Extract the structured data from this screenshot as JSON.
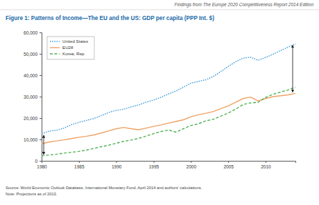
{
  "chart_data": {
    "type": "line",
    "header": "Findings from The Europe 2020 Competitiveness Report 2014 Edition",
    "title": "Figure 1: Patterns of Income—The EU and the US: GDP per capita (PPP Int. $)",
    "source": "Source: World Economic Outlook Database, International Monetary Fund, April 2014 and authors' calculations.",
    "note": "Note: Projections as of 2013.",
    "x": [
      1980,
      1981,
      1982,
      1983,
      1984,
      1985,
      1986,
      1987,
      1988,
      1989,
      1990,
      1991,
      1992,
      1993,
      1994,
      1995,
      1996,
      1997,
      1998,
      1999,
      2000,
      2001,
      2002,
      2003,
      2004,
      2005,
      2006,
      2007,
      2008,
      2009,
      2010,
      2011,
      2012,
      2013,
      2014
    ],
    "series": [
      {
        "name": "United States",
        "color": "#3a9ad9",
        "line_style": "dotted",
        "values": [
          12600,
          13900,
          14300,
          15300,
          16900,
          18000,
          18900,
          19800,
          21100,
          22600,
          23600,
          24100,
          25200,
          26100,
          27400,
          28400,
          29700,
          31300,
          32600,
          34400,
          36300,
          37100,
          37900,
          39400,
          41700,
          44100,
          46300,
          48000,
          48400,
          47000,
          48300,
          49800,
          51500,
          53100,
          54600
        ]
      },
      {
        "name": "EU28",
        "color": "#f0a060",
        "line_style": "solid",
        "values": [
          8000,
          8800,
          9300,
          9800,
          10400,
          11000,
          11500,
          12100,
          13000,
          14000,
          15000,
          15600,
          15000,
          14500,
          15300,
          16100,
          16800,
          17600,
          18400,
          19200,
          20600,
          21500,
          22200,
          23000,
          24400,
          25700,
          27400,
          29100,
          29800,
          28000,
          29100,
          30000,
          30400,
          30800,
          31500
        ]
      },
      {
        "name": "Korea, Rep.",
        "color": "#4caf50",
        "line_style": "dashed",
        "values": [
          2300,
          2700,
          3100,
          3600,
          4000,
          4400,
          5000,
          5800,
          6600,
          7300,
          8200,
          9100,
          9700,
          10500,
          11600,
          12700,
          13700,
          14400,
          13400,
          15000,
          16500,
          17300,
          18700,
          19400,
          20900,
          22300,
          24200,
          26300,
          27100,
          27300,
          29600,
          31100,
          32100,
          33100,
          34500
        ]
      }
    ],
    "xlim": [
      1980,
      2014
    ],
    "xticks": [
      1980,
      1985,
      1990,
      1995,
      2000,
      2005,
      2010
    ],
    "ylim": [
      0,
      60000
    ],
    "yticks": [
      0,
      {
        "value": 10000,
        "label": "10,000"
      },
      {
        "value": 20000,
        "label": "20,000"
      },
      {
        "value": 30000,
        "label": "30,000"
      },
      {
        "value": 40000,
        "label": "40,000"
      },
      {
        "value": 50000,
        "label": "50,000"
      },
      {
        "value": 60000,
        "label": "60,000"
      }
    ],
    "grid": false,
    "legend": "upper left"
  }
}
